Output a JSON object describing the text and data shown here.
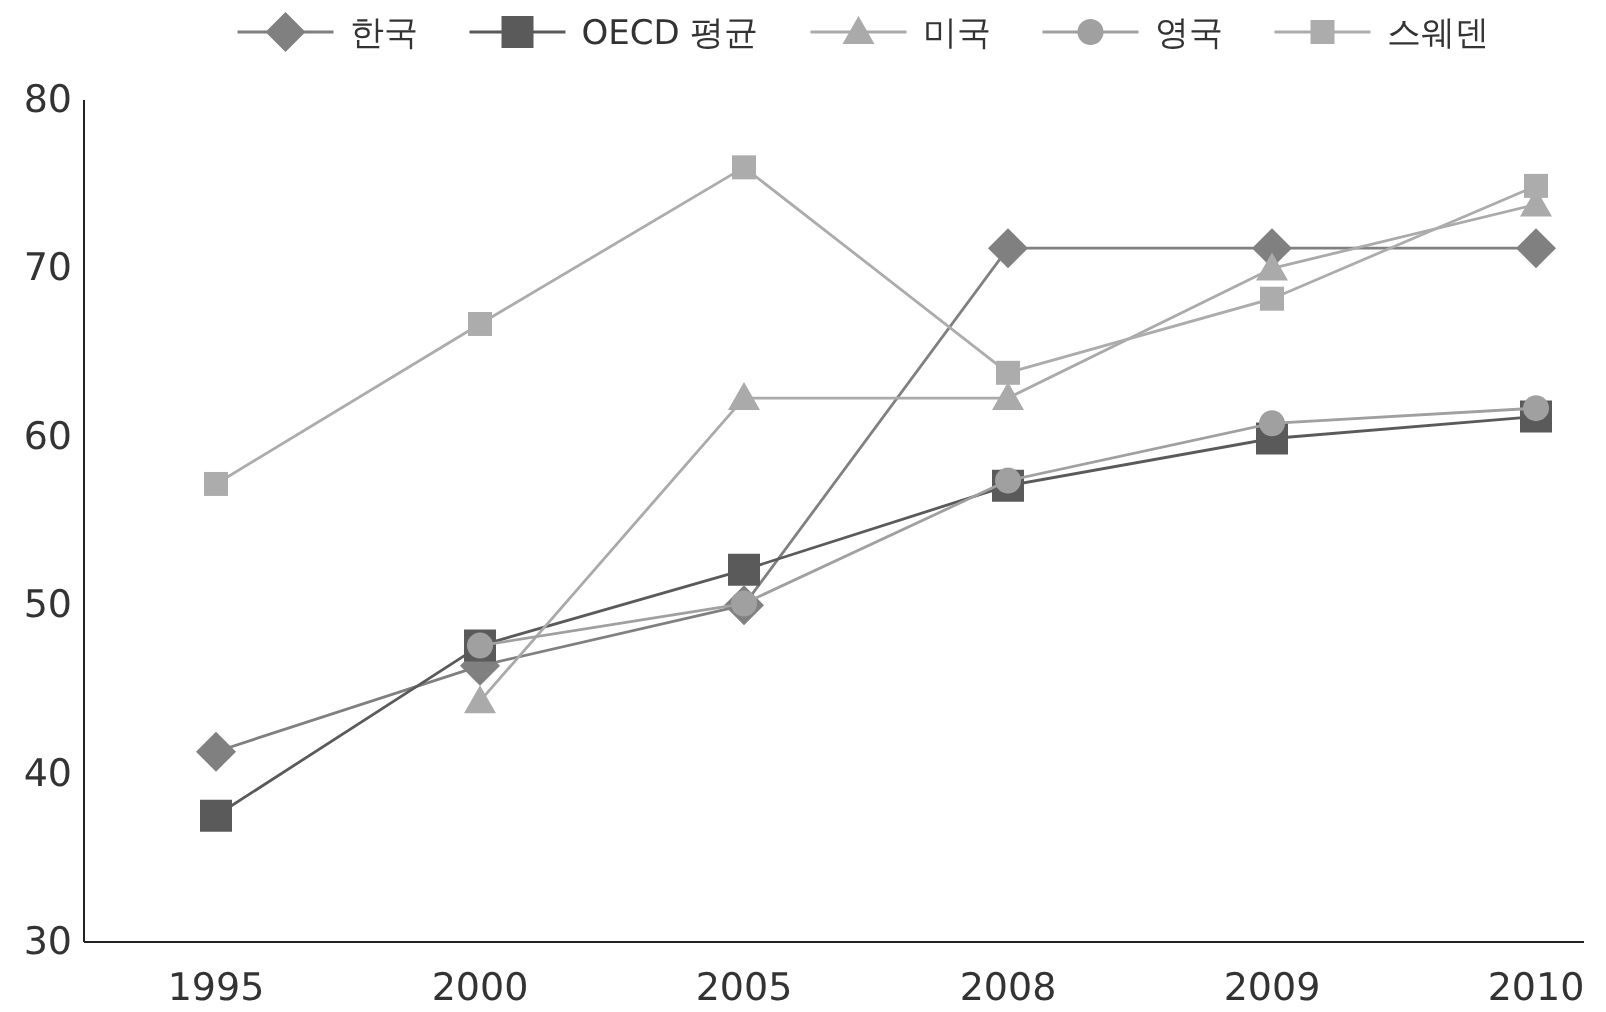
{
  "chart_data": {
    "type": "line",
    "categories": [
      "1995",
      "2000",
      "2005",
      "2008",
      "2009",
      "2010"
    ],
    "ylim": [
      30,
      80
    ],
    "yticks": [
      30,
      40,
      50,
      60,
      70,
      80
    ],
    "grid": false,
    "legend": "top",
    "series": [
      {
        "name": "한국",
        "color": "#808080",
        "marker": "diamond",
        "values": [
          41.3,
          46.4,
          50.0,
          71.2,
          71.2,
          71.2
        ]
      },
      {
        "name": "OECD 평균",
        "color": "#5a5a5a",
        "marker": "square",
        "values": [
          37.5,
          47.6,
          52.1,
          57.1,
          59.9,
          61.2
        ]
      },
      {
        "name": "미국",
        "color": "#aaaaaa",
        "marker": "triangle",
        "values": [
          null,
          44.3,
          62.3,
          62.3,
          70.0,
          73.8
        ]
      },
      {
        "name": "영국",
        "color": "#a0a0a0",
        "marker": "circle",
        "values": [
          null,
          47.6,
          50.1,
          57.4,
          60.8,
          61.7
        ]
      },
      {
        "name": "스웨덴",
        "color": "#acacac",
        "marker": "square_small",
        "values": [
          57.2,
          66.7,
          76.0,
          63.8,
          68.2,
          74.9
        ]
      }
    ]
  }
}
